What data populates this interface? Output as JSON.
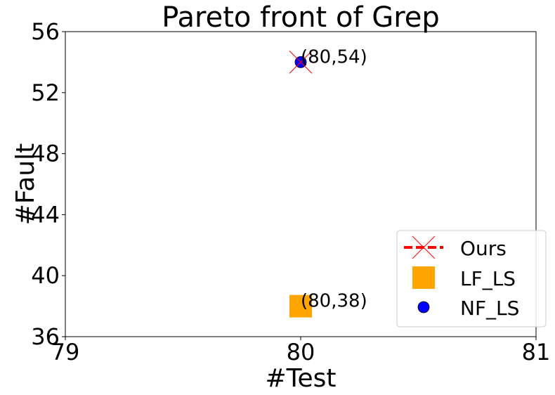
{
  "chart_data": {
    "type": "scatter",
    "title": "Pareto front of Grep",
    "xlabel": "#Test",
    "ylabel": "#Fault",
    "xlim": [
      79,
      81
    ],
    "ylim": [
      36,
      56
    ],
    "xticks": [
      79,
      80,
      81
    ],
    "yticks": [
      36,
      40,
      44,
      48,
      52,
      56
    ],
    "grid": false,
    "legend_position": "lower-right",
    "series": [
      {
        "name": "Ours",
        "marker": "x",
        "linestyle": "dashed",
        "color": "#ff0000",
        "points": [
          {
            "x": 80,
            "y": 54
          }
        ]
      },
      {
        "name": "LF_LS",
        "marker": "square",
        "color": "#ffa500",
        "points": [
          {
            "x": 80,
            "y": 38
          }
        ]
      },
      {
        "name": "NF_LS",
        "marker": "circle",
        "color": "#0000ff",
        "points": [
          {
            "x": 80,
            "y": 54
          }
        ]
      }
    ],
    "annotations": [
      {
        "text": "(80,54)",
        "x": 80,
        "y": 54
      },
      {
        "text": "(80,38)",
        "x": 80,
        "y": 38
      }
    ]
  }
}
